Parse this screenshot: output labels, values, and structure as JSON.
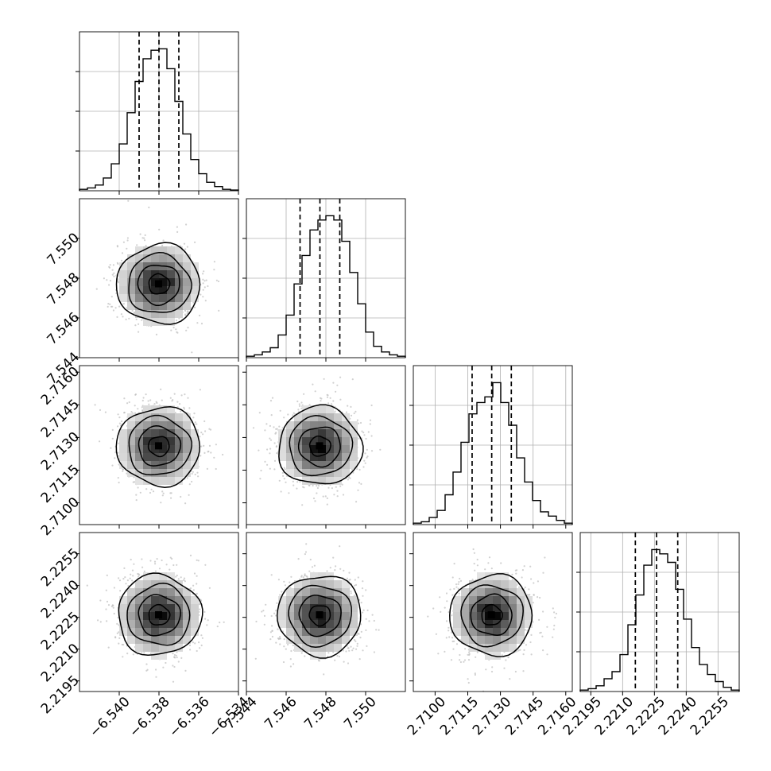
{
  "chart_data": {
    "type": "corner",
    "title": "",
    "parameters": [
      {
        "axis_ticks": [
          "−6.540",
          "−6.538",
          "−6.536",
          "−6.534"
        ],
        "tick_values": [
          -6.54,
          -6.538,
          -6.536,
          -6.534
        ],
        "range": [
          -6.542,
          -6.534
        ],
        "quantiles": [
          -6.539,
          -6.538,
          -6.537
        ],
        "mean": -6.538,
        "sd": 0.001
      },
      {
        "axis_ticks": [
          "7.544",
          "7.546",
          "7.548",
          "7.550"
        ],
        "tick_values": [
          7.544,
          7.546,
          7.548,
          7.55
        ],
        "range": [
          7.544,
          7.552
        ],
        "quantiles": [
          7.5467,
          7.5477,
          7.5487
        ],
        "mean": 7.5477,
        "sd": 0.001
      },
      {
        "axis_ticks": [
          "2.7100",
          "2.7115",
          "2.7130",
          "2.7145",
          "2.7160"
        ],
        "tick_values": [
          2.71,
          2.7115,
          2.713,
          2.7145,
          2.716
        ],
        "range": [
          2.709,
          2.7163
        ],
        "quantiles": [
          2.7117,
          2.7126,
          2.7135
        ],
        "mean": 2.7126,
        "sd": 0.0009
      },
      {
        "axis_ticks": [
          "2.2195",
          "2.2210",
          "2.2225",
          "2.2240",
          "2.2255"
        ],
        "tick_values": [
          2.2195,
          2.221,
          2.2225,
          2.224,
          2.2255
        ],
        "range": [
          2.219,
          2.2265
        ],
        "quantiles": [
          2.2216,
          2.2226,
          2.2236
        ],
        "mean": 2.2226,
        "sd": 0.00095
      }
    ],
    "histograms": [
      [
        0.01,
        0.02,
        0.04,
        0.09,
        0.19,
        0.33,
        0.55,
        0.77,
        0.93,
        0.99,
        1.0,
        0.86,
        0.63,
        0.4,
        0.22,
        0.12,
        0.06,
        0.03,
        0.01,
        0.005
      ],
      [
        0.01,
        0.02,
        0.04,
        0.07,
        0.16,
        0.3,
        0.52,
        0.72,
        0.9,
        0.97,
        1.0,
        0.97,
        0.82,
        0.6,
        0.38,
        0.18,
        0.08,
        0.04,
        0.02,
        0.01
      ],
      [
        0.01,
        0.02,
        0.05,
        0.1,
        0.21,
        0.37,
        0.58,
        0.78,
        0.86,
        0.9,
        1.0,
        0.86,
        0.7,
        0.47,
        0.3,
        0.17,
        0.09,
        0.06,
        0.03,
        0.01
      ],
      [
        0.01,
        0.02,
        0.04,
        0.09,
        0.14,
        0.26,
        0.47,
        0.68,
        0.89,
        1.0,
        0.97,
        0.91,
        0.72,
        0.51,
        0.31,
        0.19,
        0.12,
        0.07,
        0.03,
        0.01
      ]
    ],
    "contour_levels_sigma": [
      0.5,
      1.0,
      1.5,
      2.0
    ],
    "grid": true
  }
}
